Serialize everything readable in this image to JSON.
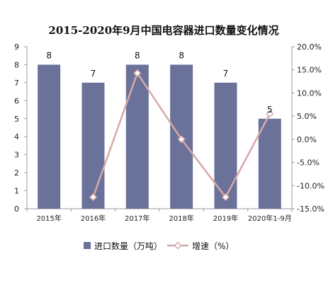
{
  "chart_data": {
    "type": "bar",
    "title": "2015-2020年9月中国电容器进口数量变化情况",
    "categories": [
      "2015年",
      "2016年",
      "2017年",
      "2018年",
      "2019年",
      "2020年1-9月"
    ],
    "series": [
      {
        "name": "进口数量（万吨）",
        "type": "bar",
        "axis": "left",
        "values": [
          8,
          7,
          8,
          8,
          7,
          5
        ],
        "data_labels": [
          "8",
          "7",
          "8",
          "8",
          "7",
          "5"
        ],
        "color": "#6b7299"
      },
      {
        "name": "增速（%）",
        "type": "line",
        "axis": "right",
        "values": [
          null,
          -12.5,
          14.3,
          0.0,
          -12.5,
          5.5
        ],
        "color": "#d8a7a9"
      }
    ],
    "y_left": {
      "min": 0,
      "max": 9,
      "ticks": [
        "0",
        "1",
        "2",
        "3",
        "4",
        "5",
        "6",
        "7",
        "8",
        "9"
      ]
    },
    "y_right": {
      "min": -15,
      "max": 20,
      "ticks": [
        "-15.0%",
        "-10.0%",
        "-5.0%",
        "0.0%",
        "5.0%",
        "10.0%",
        "15.0%",
        "20.0%"
      ]
    },
    "grid": false,
    "legend_position": "bottom"
  }
}
